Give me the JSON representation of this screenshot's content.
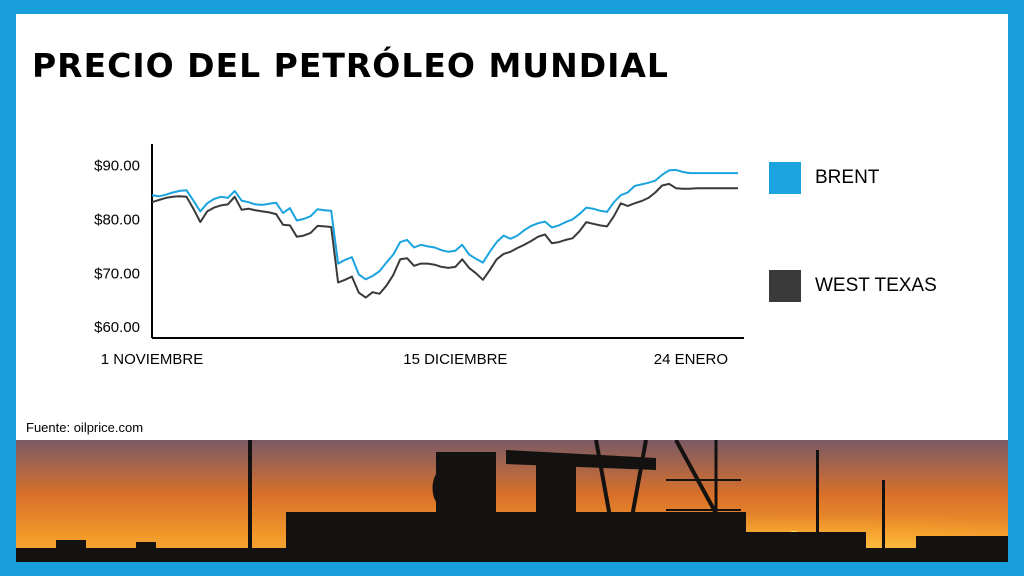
{
  "title": "PRECIO DEL PETRÓLEO MUNDIAL",
  "source": "Fuente: oilprice.com",
  "colors": {
    "frame": "#1a9fdd",
    "brent": "#1aa3de",
    "wti": "#3a3a3a"
  },
  "legend": [
    {
      "label": "BRENT",
      "color": "#1aa3de"
    },
    {
      "label": "WEST TEXAS",
      "color": "#3a3a3a"
    }
  ],
  "chart_data": {
    "type": "line",
    "x_ticks": [
      {
        "label": "1 NOVIEMBRE",
        "at": 0
      },
      {
        "label": "15 DICIEMBRE",
        "at": 44
      },
      {
        "label": "24 ENERO",
        "at": 84
      }
    ],
    "y_ticks": [
      "$90.00",
      "$80.00",
      "$70.00",
      "$60.00"
    ],
    "ylim": [
      58,
      94
    ],
    "xlim": [
      0,
      85
    ],
    "series": [
      {
        "name": "BRENT",
        "x": [
          0,
          1,
          2,
          3,
          4,
          5,
          6,
          7,
          8,
          9,
          10,
          11,
          12,
          13,
          14,
          15,
          16,
          17,
          18,
          19,
          20,
          21,
          22,
          23,
          24,
          25,
          26,
          27,
          28,
          29,
          30,
          31,
          32,
          33,
          34,
          35,
          36,
          37,
          38,
          39,
          40,
          41,
          42,
          43,
          44,
          45,
          46,
          47,
          48,
          49,
          50,
          51,
          52,
          53,
          54,
          55,
          56,
          57,
          58,
          59,
          60,
          61,
          62,
          63,
          64,
          65,
          66,
          67,
          68,
          69,
          70,
          71,
          72,
          73,
          74,
          75,
          76,
          77,
          78,
          79,
          80,
          81,
          82,
          83,
          84,
          85
        ],
        "values": [
          84.5,
          84.3,
          84.6,
          85.0,
          85.3,
          85.4,
          83.5,
          81.5,
          83.0,
          83.8,
          84.2,
          84.0,
          85.3,
          83.5,
          83.2,
          82.8,
          82.7,
          82.9,
          83.1,
          81.2,
          82.1,
          79.8,
          80.1,
          80.6,
          81.9,
          81.7,
          81.6,
          71.8,
          72.5,
          73.0,
          69.8,
          68.9,
          69.5,
          70.4,
          72.0,
          73.5,
          75.8,
          76.2,
          74.8,
          75.3,
          75.0,
          74.8,
          74.3,
          74.0,
          74.2,
          75.3,
          73.5,
          72.7,
          72.0,
          74.0,
          75.8,
          77.0,
          76.4,
          77.0,
          78.0,
          78.8,
          79.3,
          79.6,
          78.5,
          78.9,
          79.5,
          80.0,
          81.0,
          82.2,
          82.0,
          81.6,
          81.4,
          83.2,
          84.5,
          85.0,
          86.2,
          86.5,
          86.8,
          87.2,
          88.3,
          89.1,
          89.2,
          88.8,
          88.6,
          88.6,
          88.6,
          88.6,
          88.6,
          88.6,
          88.6,
          88.6
        ]
      },
      {
        "name": "WEST TEXAS",
        "x": [
          0,
          1,
          2,
          3,
          4,
          5,
          6,
          7,
          8,
          9,
          10,
          11,
          12,
          13,
          14,
          15,
          16,
          17,
          18,
          19,
          20,
          21,
          22,
          23,
          24,
          25,
          26,
          27,
          28,
          29,
          30,
          31,
          32,
          33,
          34,
          35,
          36,
          37,
          38,
          39,
          40,
          41,
          42,
          43,
          44,
          45,
          46,
          47,
          48,
          49,
          50,
          51,
          52,
          53,
          54,
          55,
          56,
          57,
          58,
          59,
          60,
          61,
          62,
          63,
          64,
          65,
          66,
          67,
          68,
          69,
          70,
          71,
          72,
          73,
          74,
          75,
          76,
          77,
          78,
          79,
          80,
          81,
          82,
          83,
          84,
          85
        ],
        "values": [
          83.2,
          83.6,
          84.0,
          84.2,
          84.3,
          84.2,
          82.0,
          79.5,
          81.5,
          82.2,
          82.6,
          82.8,
          84.2,
          81.8,
          82.0,
          81.7,
          81.5,
          81.3,
          81.0,
          79.0,
          78.9,
          76.8,
          77.0,
          77.5,
          78.8,
          78.7,
          78.6,
          68.3,
          68.8,
          69.4,
          66.4,
          65.5,
          66.5,
          66.2,
          67.7,
          69.7,
          72.6,
          72.8,
          71.4,
          71.8,
          71.8,
          71.6,
          71.2,
          71.0,
          71.2,
          72.6,
          71.0,
          70.0,
          68.8,
          70.6,
          72.6,
          73.6,
          74.0,
          74.7,
          75.3,
          76.0,
          76.8,
          77.2,
          75.6,
          75.8,
          76.2,
          76.5,
          77.8,
          79.5,
          79.2,
          78.9,
          78.7,
          80.6,
          83.0,
          82.5,
          83.0,
          83.4,
          84.0,
          85.0,
          86.3,
          86.6,
          85.8,
          85.7,
          85.7,
          85.8,
          85.8,
          85.8,
          85.8,
          85.8,
          85.8,
          85.8
        ]
      }
    ]
  }
}
